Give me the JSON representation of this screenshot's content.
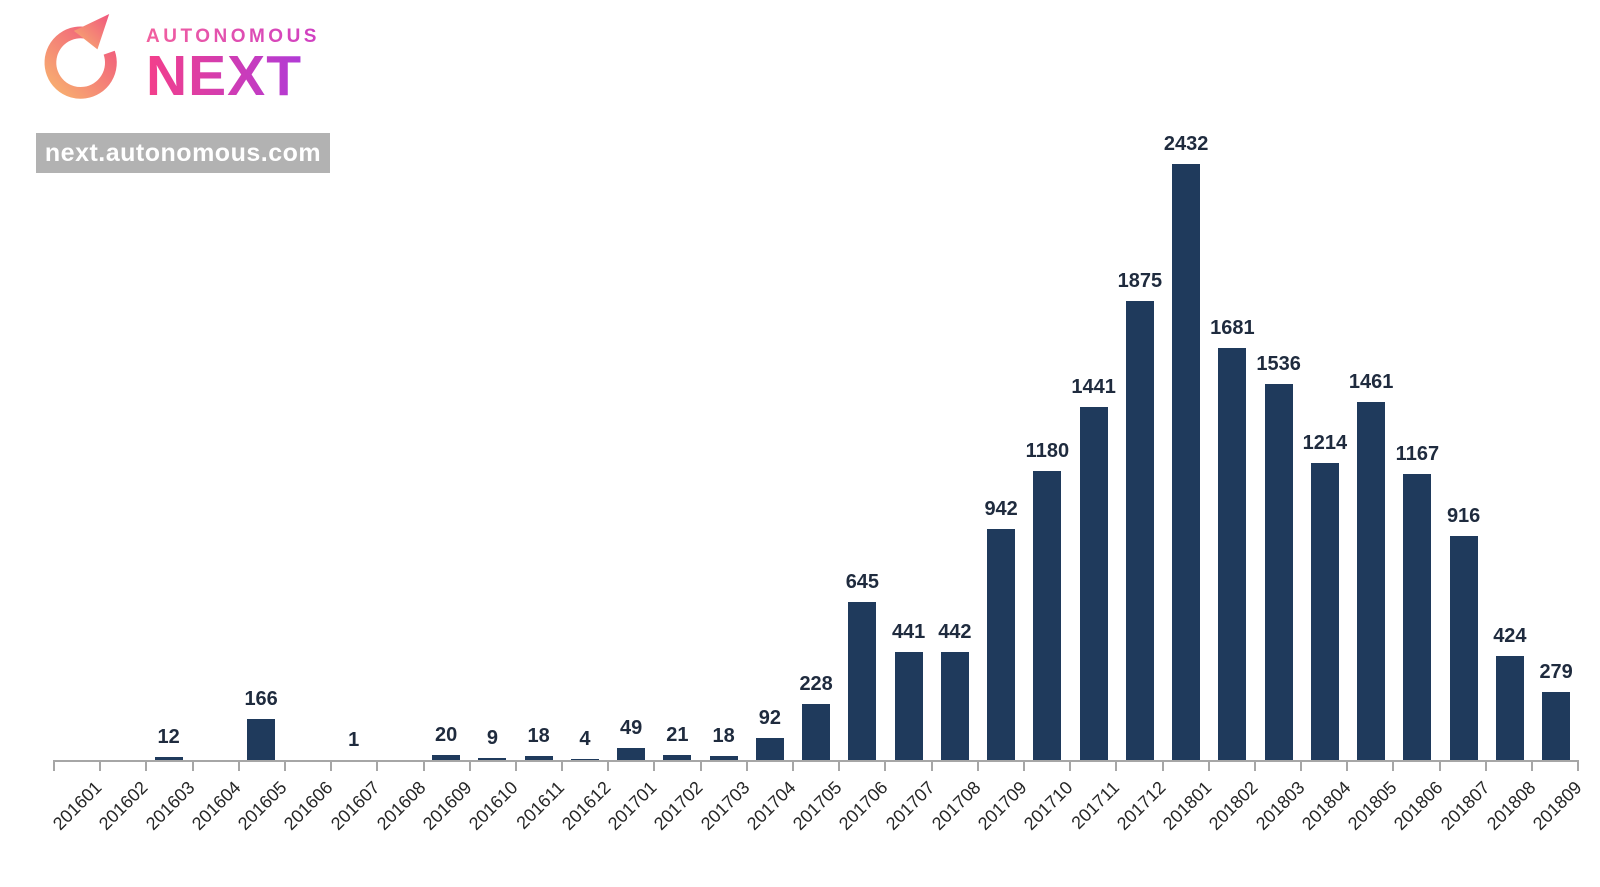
{
  "logo": {
    "brand_top": "AUTONOMOUS",
    "brand_main": "NEXT",
    "url_badge": "next.autonomous.com",
    "icon": "circular-arrow-icon",
    "colors": {
      "autonomous_from": "#f2609e",
      "autonomous_to": "#cf3fc3",
      "next_from": "#f43f8a",
      "next_to": "#a93ae0",
      "arrow_from": "#f8b26f",
      "arrow_to": "#f0567e",
      "badge_bg": "#b2b2b2",
      "badge_text": "#ffffff"
    }
  },
  "chart_data": {
    "type": "bar",
    "title": "",
    "xlabel": "",
    "ylabel": "",
    "categories": [
      "201601",
      "201602",
      "201603",
      "201604",
      "201605",
      "201606",
      "201607",
      "201608",
      "201609",
      "201610",
      "201611",
      "201612",
      "201701",
      "201702",
      "201703",
      "201704",
      "201705",
      "201706",
      "201707",
      "201708",
      "201709",
      "201710",
      "201711",
      "201712",
      "201801",
      "201802",
      "201803",
      "201804",
      "201805",
      "201806",
      "201807",
      "201808",
      "201809"
    ],
    "values": [
      null,
      null,
      12,
      null,
      166,
      null,
      1,
      null,
      20,
      9,
      18,
      4,
      49,
      21,
      18,
      92,
      228,
      645,
      441,
      442,
      942,
      1180,
      1441,
      1875,
      2432,
      1681,
      1536,
      1214,
      1461,
      1167,
      916,
      424,
      279
    ],
    "ylim": [
      0,
      2432
    ],
    "grid": false,
    "legend": "none",
    "data_labels": "above-bars",
    "x_tick_rotation": 45,
    "bar_color": "#1f3a5c",
    "axis_color": "#a6a6a6",
    "value_label_color": "#1f2b3e",
    "tick_label_color": "#262626"
  }
}
